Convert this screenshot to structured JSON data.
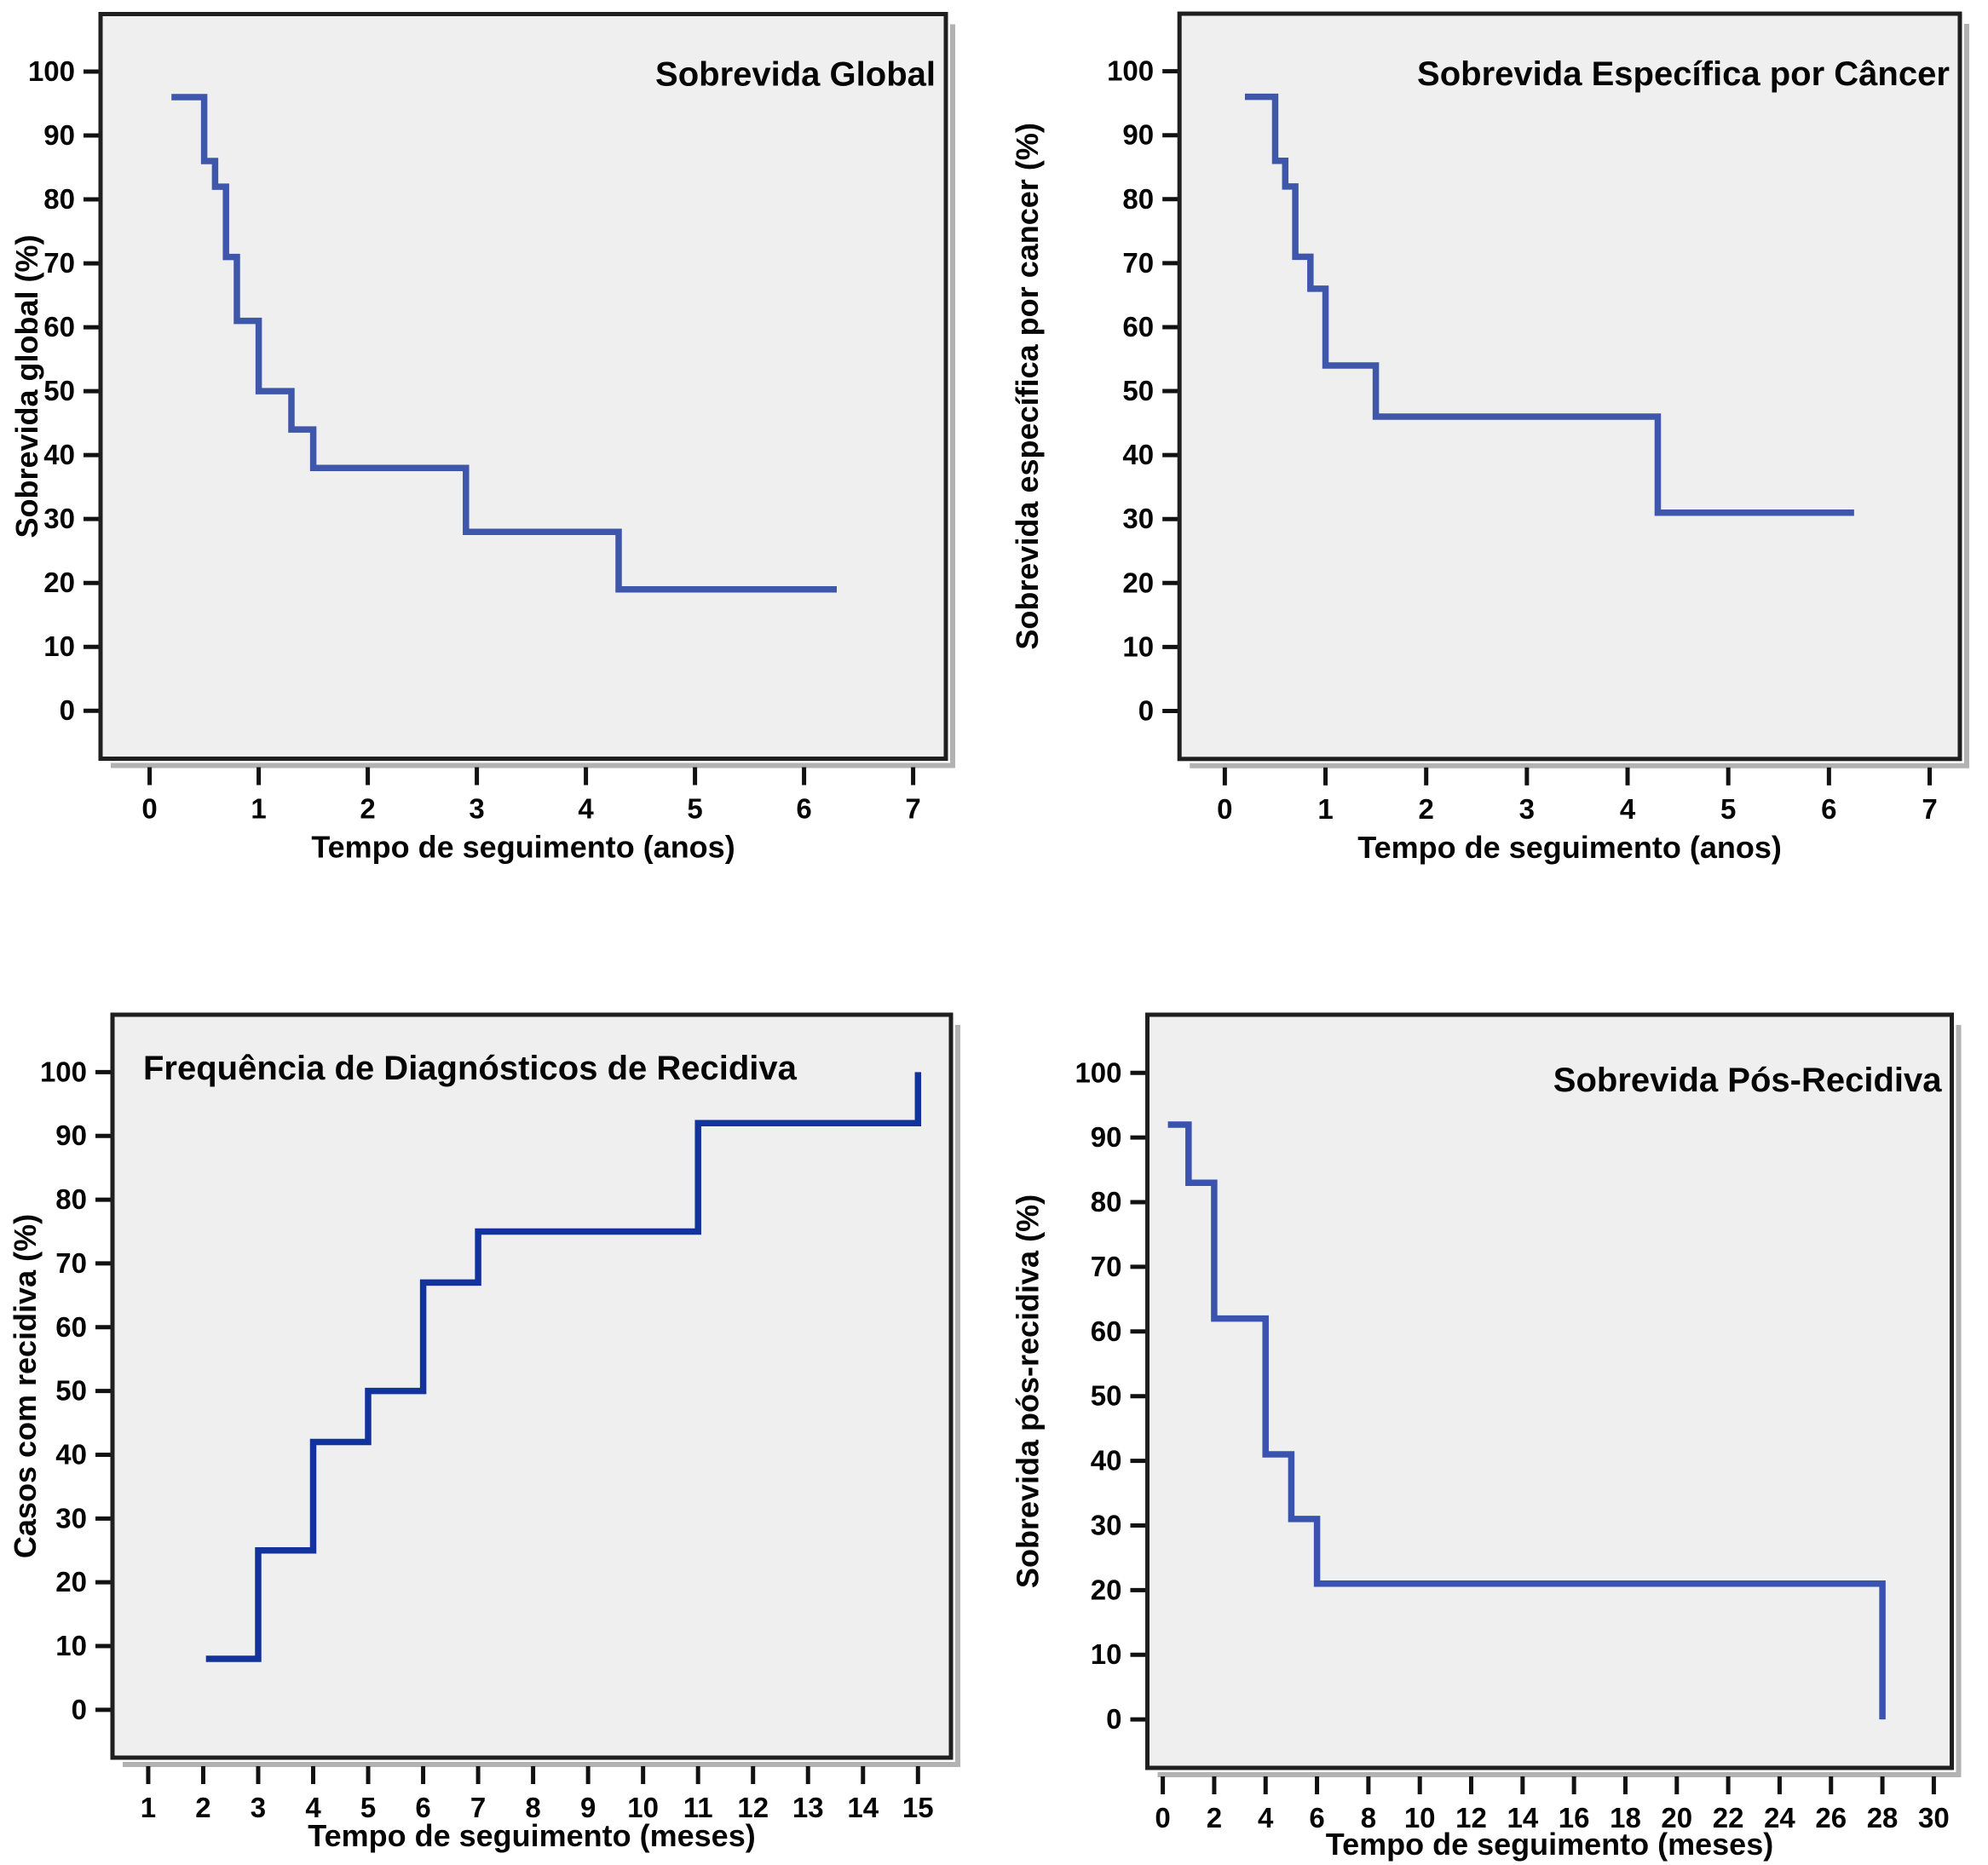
{
  "figure": {
    "description_labels": {
      "top_left_title": "Sobrevida Global",
      "top_right_title": "Sobrevida Específica por Câncer",
      "bottom_left_title": "Frequência de Diagnósticos de Recidiva",
      "bottom_right_title": "Sobrevida Pós-Recidiva"
    },
    "colors": {
      "plot_background": "#efeff0",
      "frame": "#1f1f1f",
      "shadow": "#b2b2b2",
      "text": "#050505"
    }
  },
  "chart_data": [
    {
      "type": "line",
      "subtype": "kaplan-meier-step",
      "title": "Sobrevida Global",
      "title_align": "right",
      "xlabel": "Tempo de seguimento (anos)",
      "ylabel": "Sobrevida global (%)",
      "line_color": "#3e57ab",
      "x_ticks": [
        0,
        1,
        2,
        3,
        4,
        5,
        6,
        7
      ],
      "y_ticks": [
        0,
        10,
        20,
        30,
        40,
        50,
        60,
        70,
        80,
        90,
        100
      ],
      "x_range": [
        -0.45,
        7.3
      ],
      "y_range": [
        -7.5,
        109
      ],
      "grid": false,
      "legend": "none",
      "points": [
        [
          0.2,
          96
        ],
        [
          0.5,
          86
        ],
        [
          0.6,
          82
        ],
        [
          0.7,
          71
        ],
        [
          0.8,
          61
        ],
        [
          1.0,
          50
        ],
        [
          1.3,
          44
        ],
        [
          1.5,
          38
        ],
        [
          2.9,
          28
        ],
        [
          4.3,
          19
        ]
      ],
      "end_x": 6.3
    },
    {
      "type": "line",
      "subtype": "kaplan-meier-step",
      "title": "Sobrevida Específica por Câncer",
      "title_align": "right",
      "xlabel": "Tempo de seguimento (anos)",
      "ylabel": "Sobrevida específica por cancer (%)",
      "line_color": "#3e57ab",
      "x_ticks": [
        0,
        1,
        2,
        3,
        4,
        5,
        6,
        7
      ],
      "y_ticks": [
        0,
        10,
        20,
        30,
        40,
        50,
        60,
        70,
        80,
        90,
        100
      ],
      "x_range": [
        -0.45,
        7.3
      ],
      "y_range": [
        -7.5,
        109
      ],
      "grid": false,
      "legend": "none",
      "points": [
        [
          0.2,
          96
        ],
        [
          0.5,
          86
        ],
        [
          0.6,
          82
        ],
        [
          0.7,
          71
        ],
        [
          0.85,
          66
        ],
        [
          1.0,
          54
        ],
        [
          1.5,
          46
        ],
        [
          4.3,
          31
        ]
      ],
      "end_x": 6.25
    },
    {
      "type": "line",
      "subtype": "cumulative-step",
      "title": "Frequência de Diagnósticos de Recidiva",
      "title_align": "left",
      "xlabel": "Tempo de seguimento (meses)",
      "ylabel": "Casos com recidiva (%)",
      "line_color": "#12339c",
      "x_ticks": [
        1,
        2,
        3,
        4,
        5,
        6,
        7,
        8,
        9,
        10,
        11,
        12,
        13,
        14,
        15
      ],
      "y_ticks": [
        0,
        10,
        20,
        30,
        40,
        50,
        60,
        70,
        80,
        90,
        100
      ],
      "x_range": [
        0.35,
        15.6
      ],
      "y_range": [
        -7.5,
        109
      ],
      "grid": false,
      "legend": "none",
      "points": [
        [
          2.05,
          8
        ],
        [
          3,
          25
        ],
        [
          4,
          42
        ],
        [
          5,
          50
        ],
        [
          6,
          67
        ],
        [
          7,
          75
        ],
        [
          11,
          92
        ],
        [
          15,
          100
        ]
      ],
      "end_x": 15
    },
    {
      "type": "line",
      "subtype": "kaplan-meier-step",
      "title": "Sobrevida Pós-Recidiva",
      "title_align": "right",
      "xlabel": "Tempo de seguimento (meses)",
      "ylabel": "Sobrevida pós-recidiva (%)",
      "line_color": "#3a53b0",
      "x_ticks": [
        0,
        2,
        4,
        6,
        8,
        10,
        12,
        14,
        16,
        18,
        20,
        22,
        24,
        26,
        28,
        30
      ],
      "y_ticks": [
        0,
        10,
        20,
        30,
        40,
        50,
        60,
        70,
        80,
        90,
        100
      ],
      "x_range": [
        -0.6,
        30.7
      ],
      "y_range": [
        -7.5,
        109
      ],
      "grid": false,
      "legend": "none",
      "points": [
        [
          0.2,
          92
        ],
        [
          1,
          83
        ],
        [
          2,
          62
        ],
        [
          4,
          41
        ],
        [
          5,
          31
        ],
        [
          6,
          21
        ],
        [
          28,
          0
        ]
      ],
      "end_x": 28
    }
  ]
}
